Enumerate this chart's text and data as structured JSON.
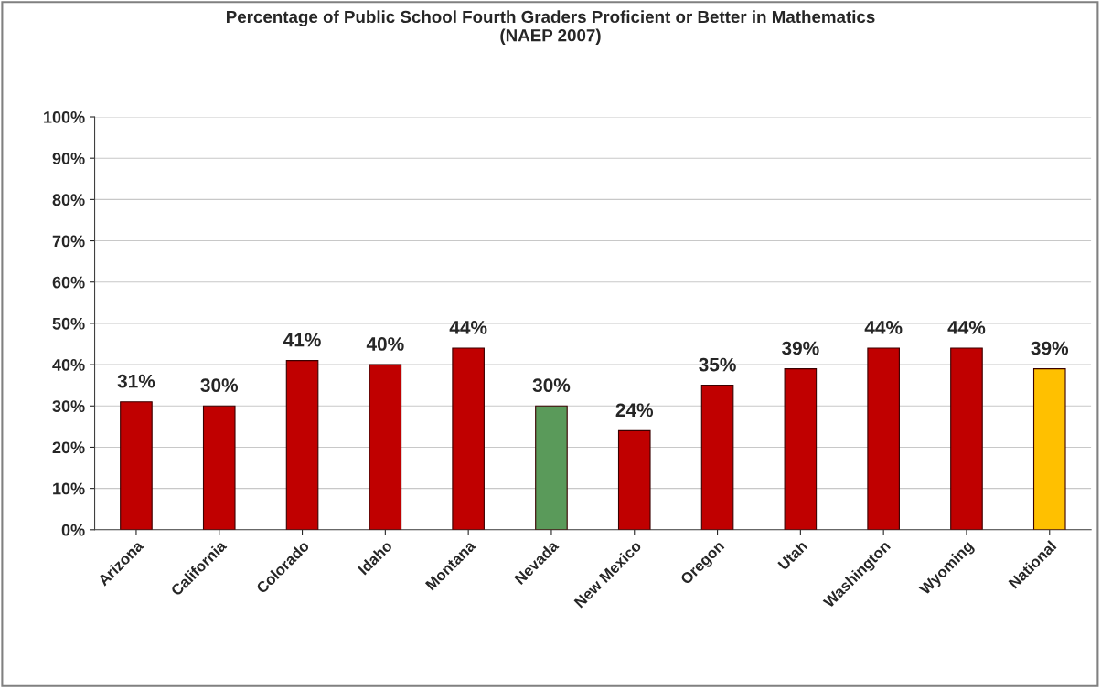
{
  "chart_data": {
    "type": "bar",
    "title": "Percentage of Public School Fourth Graders Proficient or Better in Mathematics\n(NAEP 2007)",
    "categories": [
      "Arizona",
      "California",
      "Colorado",
      "Idaho",
      "Montana",
      "Nevada",
      "New Mexico",
      "Oregon",
      "Utah",
      "Washington",
      "Wyoming",
      "National"
    ],
    "values": [
      31,
      30,
      41,
      40,
      44,
      30,
      24,
      35,
      39,
      44,
      44,
      39
    ],
    "colors": [
      "#c00000",
      "#c00000",
      "#c00000",
      "#c00000",
      "#c00000",
      "#5a9a5a",
      "#c00000",
      "#c00000",
      "#c00000",
      "#c00000",
      "#c00000",
      "#ffc000"
    ],
    "value_labels": [
      "31%",
      "30%",
      "41%",
      "40%",
      "44%",
      "30%",
      "24%",
      "35%",
      "39%",
      "44%",
      "44%",
      "39%"
    ],
    "ylim": [
      0,
      100
    ],
    "yticks": [
      {
        "value": 0,
        "label": "0%"
      },
      {
        "value": 10,
        "label": "10%"
      },
      {
        "value": 20,
        "label": "20%"
      },
      {
        "value": 30,
        "label": "30%"
      },
      {
        "value": 40,
        "label": "40%"
      },
      {
        "value": 50,
        "label": "50%"
      },
      {
        "value": 60,
        "label": "60%"
      },
      {
        "value": 70,
        "label": "70%"
      },
      {
        "value": 80,
        "label": "80%"
      },
      {
        "value": 90,
        "label": "90%"
      },
      {
        "value": 100,
        "label": "100%"
      }
    ],
    "grid": "y",
    "legend": false
  }
}
